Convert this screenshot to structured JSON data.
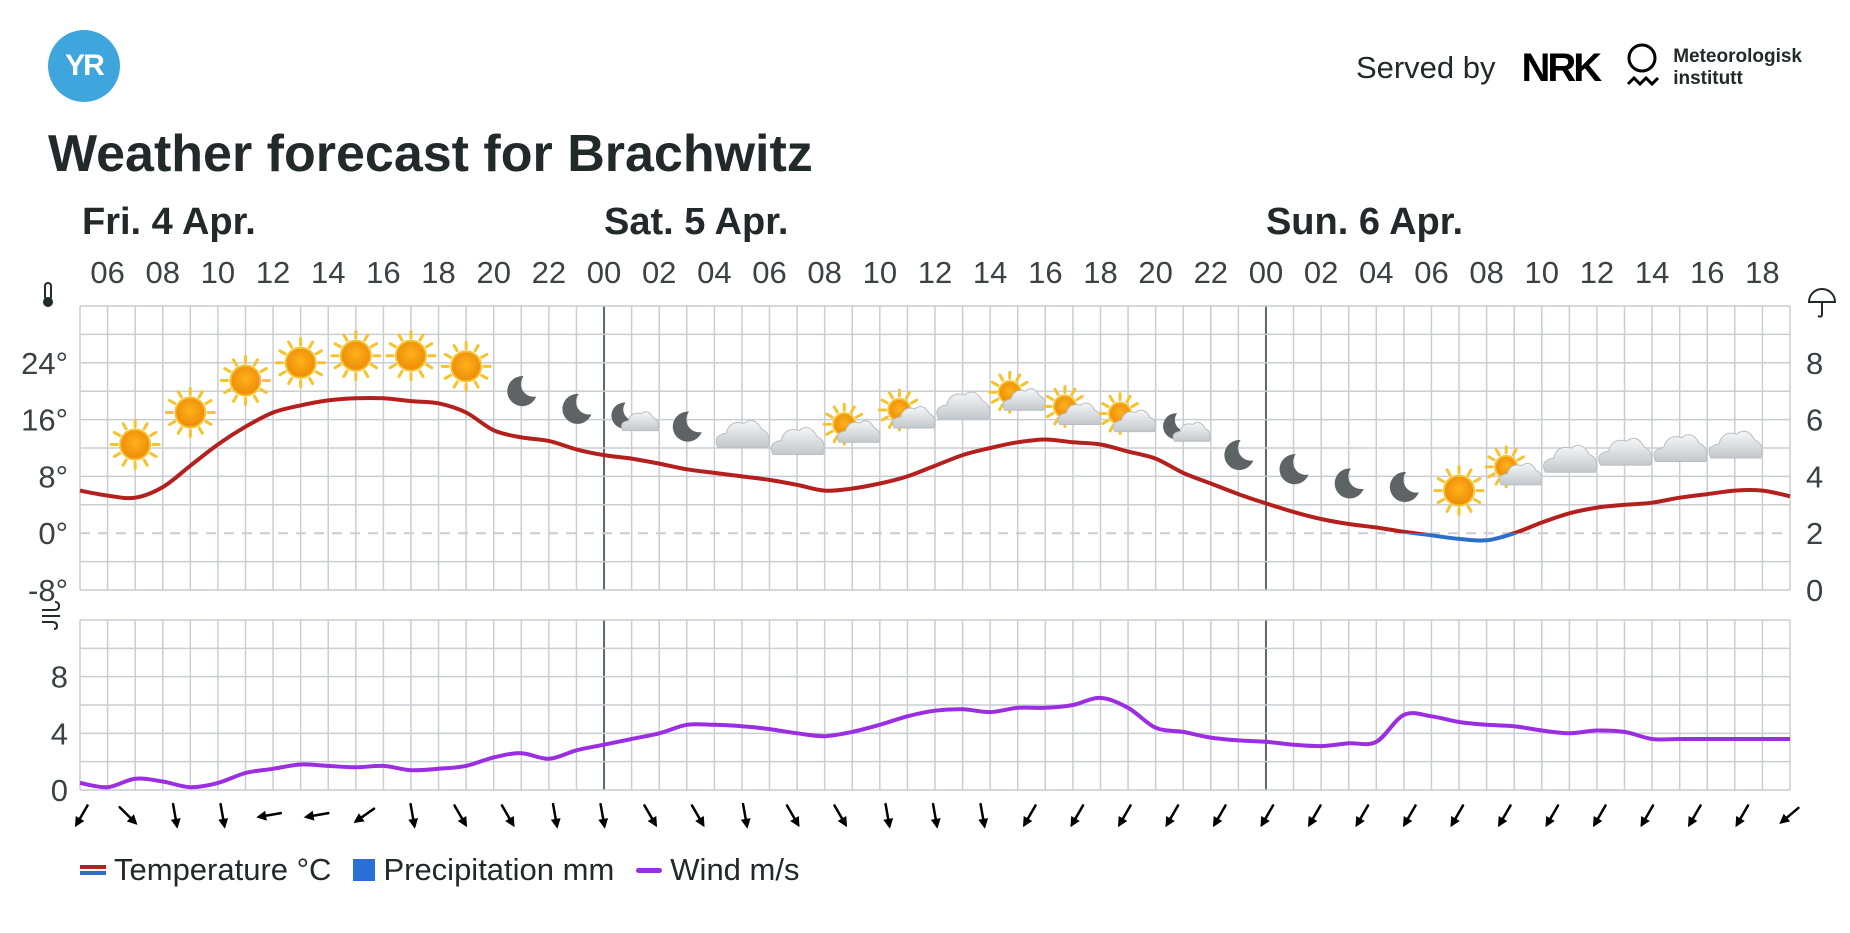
{
  "header": {
    "logo_text": "YR",
    "served_by_label": "Served by",
    "nrk_logo_text": "NRK",
    "met_line1": "Meteorologisk",
    "met_line2": "institutt",
    "title": "Weather forecast for Brachwitz"
  },
  "colors": {
    "temp_warm": "#b3201d",
    "temp_cold": "#2d6fc8",
    "wind": "#9b2ee0",
    "precip": "#2a6fd8",
    "grid": "#c9ced3",
    "logo": "#3ea6dc"
  },
  "legend": {
    "temperature": "Temperature °C",
    "precipitation": "Precipitation mm",
    "wind": "Wind m/s"
  },
  "chart_data": {
    "type": "line",
    "title": "Weather forecast for Brachwitz",
    "x_start_hour": 5,
    "x_end_hour": 67,
    "days": [
      {
        "label": "Fri. 4 Apr.",
        "at_hour": 5
      },
      {
        "label": "Sat. 5 Apr.",
        "at_hour": 24
      },
      {
        "label": "Sun. 6 Apr.",
        "at_hour": 48
      }
    ],
    "hour_ticks": [
      "06",
      "08",
      "10",
      "12",
      "14",
      "16",
      "18",
      "20",
      "22",
      "00",
      "02",
      "04",
      "06",
      "08",
      "10",
      "12",
      "14",
      "16",
      "18",
      "20",
      "22",
      "00",
      "02",
      "04",
      "06",
      "08",
      "10",
      "12",
      "14",
      "16",
      "18"
    ],
    "temperature_axis": {
      "unit_icon": "thermometer-icon",
      "ticks": [
        "24°",
        "16°",
        "8°",
        "0°",
        "-8°"
      ],
      "tick_values": [
        24,
        16,
        8,
        0,
        -8
      ],
      "range": [
        -8,
        32
      ]
    },
    "precipitation_axis": {
      "unit_icon": "umbrella-icon",
      "ticks": [
        "8",
        "6",
        "4",
        "2",
        "0"
      ],
      "tick_values": [
        8,
        6,
        4,
        2,
        0
      ],
      "range": [
        0,
        10
      ]
    },
    "wind_axis": {
      "unit_icon": "wind-icon",
      "ticks": [
        "8",
        "4",
        "0"
      ],
      "tick_values": [
        8,
        4,
        0
      ],
      "range": [
        0,
        12
      ]
    },
    "series": [
      {
        "name": "Temperature °C",
        "x": [
          5,
          6,
          7,
          8,
          9,
          10,
          11,
          12,
          13,
          14,
          15,
          16,
          17,
          18,
          19,
          20,
          21,
          22,
          23,
          24,
          25,
          26,
          27,
          28,
          29,
          30,
          31,
          32,
          33,
          34,
          35,
          36,
          37,
          38,
          39,
          40,
          41,
          42,
          43,
          44,
          45,
          46,
          47,
          48,
          49,
          50,
          51,
          52,
          53,
          54,
          55,
          56,
          57,
          58,
          59,
          60,
          61,
          62,
          63,
          64,
          65,
          66,
          67
        ],
        "values": [
          6,
          5.3,
          5,
          6.5,
          9.5,
          12.5,
          15,
          17,
          18,
          18.7,
          19,
          19,
          18.6,
          18.3,
          17,
          14.5,
          13.5,
          13,
          11.8,
          11,
          10.5,
          9.8,
          9,
          8.5,
          8,
          7.5,
          6.8,
          6,
          6.3,
          7,
          8,
          9.5,
          11,
          12,
          12.8,
          13.2,
          12.8,
          12.5,
          11.5,
          10.5,
          8.5,
          7,
          5.5,
          4.2,
          3,
          2,
          1.3,
          0.8,
          0.2,
          -0.3,
          -0.8,
          -1,
          0,
          1.5,
          2.8,
          3.6,
          4,
          4.3,
          5,
          5.5,
          6,
          6,
          5.2
        ]
      },
      {
        "name": "Wind m/s",
        "x": [
          5,
          6,
          7,
          8,
          9,
          10,
          11,
          12,
          13,
          14,
          15,
          16,
          17,
          18,
          19,
          20,
          21,
          22,
          23,
          24,
          25,
          26,
          27,
          28,
          29,
          30,
          31,
          32,
          33,
          34,
          35,
          36,
          37,
          38,
          39,
          40,
          41,
          42,
          43,
          44,
          45,
          46,
          47,
          48,
          49,
          50,
          51,
          52,
          53,
          54,
          55,
          56,
          57,
          58,
          59,
          60,
          61,
          62,
          63,
          64,
          65,
          66,
          67
        ],
        "values": [
          0.5,
          0.2,
          0.8,
          0.6,
          0.2,
          0.5,
          1.2,
          1.5,
          1.8,
          1.7,
          1.6,
          1.7,
          1.4,
          1.5,
          1.7,
          2.3,
          2.6,
          2.2,
          2.8,
          3.2,
          3.6,
          4,
          4.6,
          4.6,
          4.5,
          4.3,
          4,
          3.8,
          4.1,
          4.6,
          5.2,
          5.6,
          5.7,
          5.5,
          5.8,
          5.8,
          6,
          6.5,
          5.8,
          4.4,
          4.1,
          3.7,
          3.5,
          3.4,
          3.2,
          3.1,
          3.3,
          3.4,
          5.3,
          5.2,
          4.8,
          4.6,
          4.5,
          4.2,
          4,
          4.2,
          4.1,
          3.6,
          3.6,
          3.6,
          3.6,
          3.6,
          3.6
        ]
      }
    ],
    "precipitation_mm": [],
    "symbols": [
      {
        "hour": 7,
        "icon": "sun",
        "temp": 12.5
      },
      {
        "hour": 9,
        "icon": "sun",
        "temp": 17
      },
      {
        "hour": 11,
        "icon": "sun",
        "temp": 21.5
      },
      {
        "hour": 13,
        "icon": "sun",
        "temp": 24
      },
      {
        "hour": 15,
        "icon": "sun",
        "temp": 25
      },
      {
        "hour": 17,
        "icon": "sun",
        "temp": 25
      },
      {
        "hour": 19,
        "icon": "sun",
        "temp": 23.5
      },
      {
        "hour": 21,
        "icon": "moon",
        "temp": 20
      },
      {
        "hour": 23,
        "icon": "moon",
        "temp": 17.5
      },
      {
        "hour": 25,
        "icon": "moon-cloud",
        "temp": 16
      },
      {
        "hour": 27,
        "icon": "moon",
        "temp": 15
      },
      {
        "hour": 29,
        "icon": "cloud",
        "temp": 13.5
      },
      {
        "hour": 31,
        "icon": "cloud",
        "temp": 12.5
      },
      {
        "hour": 33,
        "icon": "sun-cloud",
        "temp": 14.5
      },
      {
        "hour": 35,
        "icon": "sun-cloud",
        "temp": 16.5
      },
      {
        "hour": 37,
        "icon": "cloud",
        "temp": 17.5
      },
      {
        "hour": 39,
        "icon": "sun-cloud",
        "temp": 19
      },
      {
        "hour": 41,
        "icon": "sun-cloud",
        "temp": 17
      },
      {
        "hour": 43,
        "icon": "sun-cloud",
        "temp": 16
      },
      {
        "hour": 45,
        "icon": "moon-cloud",
        "temp": 14.5
      },
      {
        "hour": 47,
        "icon": "moon",
        "temp": 11
      },
      {
        "hour": 49,
        "icon": "moon",
        "temp": 9
      },
      {
        "hour": 51,
        "icon": "moon",
        "temp": 7
      },
      {
        "hour": 53,
        "icon": "moon",
        "temp": 6.5
      },
      {
        "hour": 55,
        "icon": "sun",
        "temp": 6
      },
      {
        "hour": 57,
        "icon": "sun-cloud",
        "temp": 8.5
      },
      {
        "hour": 59,
        "icon": "cloud",
        "temp": 10
      },
      {
        "hour": 61,
        "icon": "cloud",
        "temp": 11
      },
      {
        "hour": 63,
        "icon": "cloud",
        "temp": 11.5
      },
      {
        "hour": 65,
        "icon": "cloud",
        "temp": 12
      }
    ],
    "wind_directions_deg": [
      30,
      315,
      350,
      350,
      80,
      80,
      55,
      350,
      330,
      330,
      350,
      350,
      330,
      330,
      350,
      330,
      330,
      350,
      350,
      350,
      30,
      30,
      30,
      30,
      30,
      30,
      30,
      30,
      30,
      30,
      30,
      30,
      30,
      30,
      30,
      30,
      50
    ]
  }
}
